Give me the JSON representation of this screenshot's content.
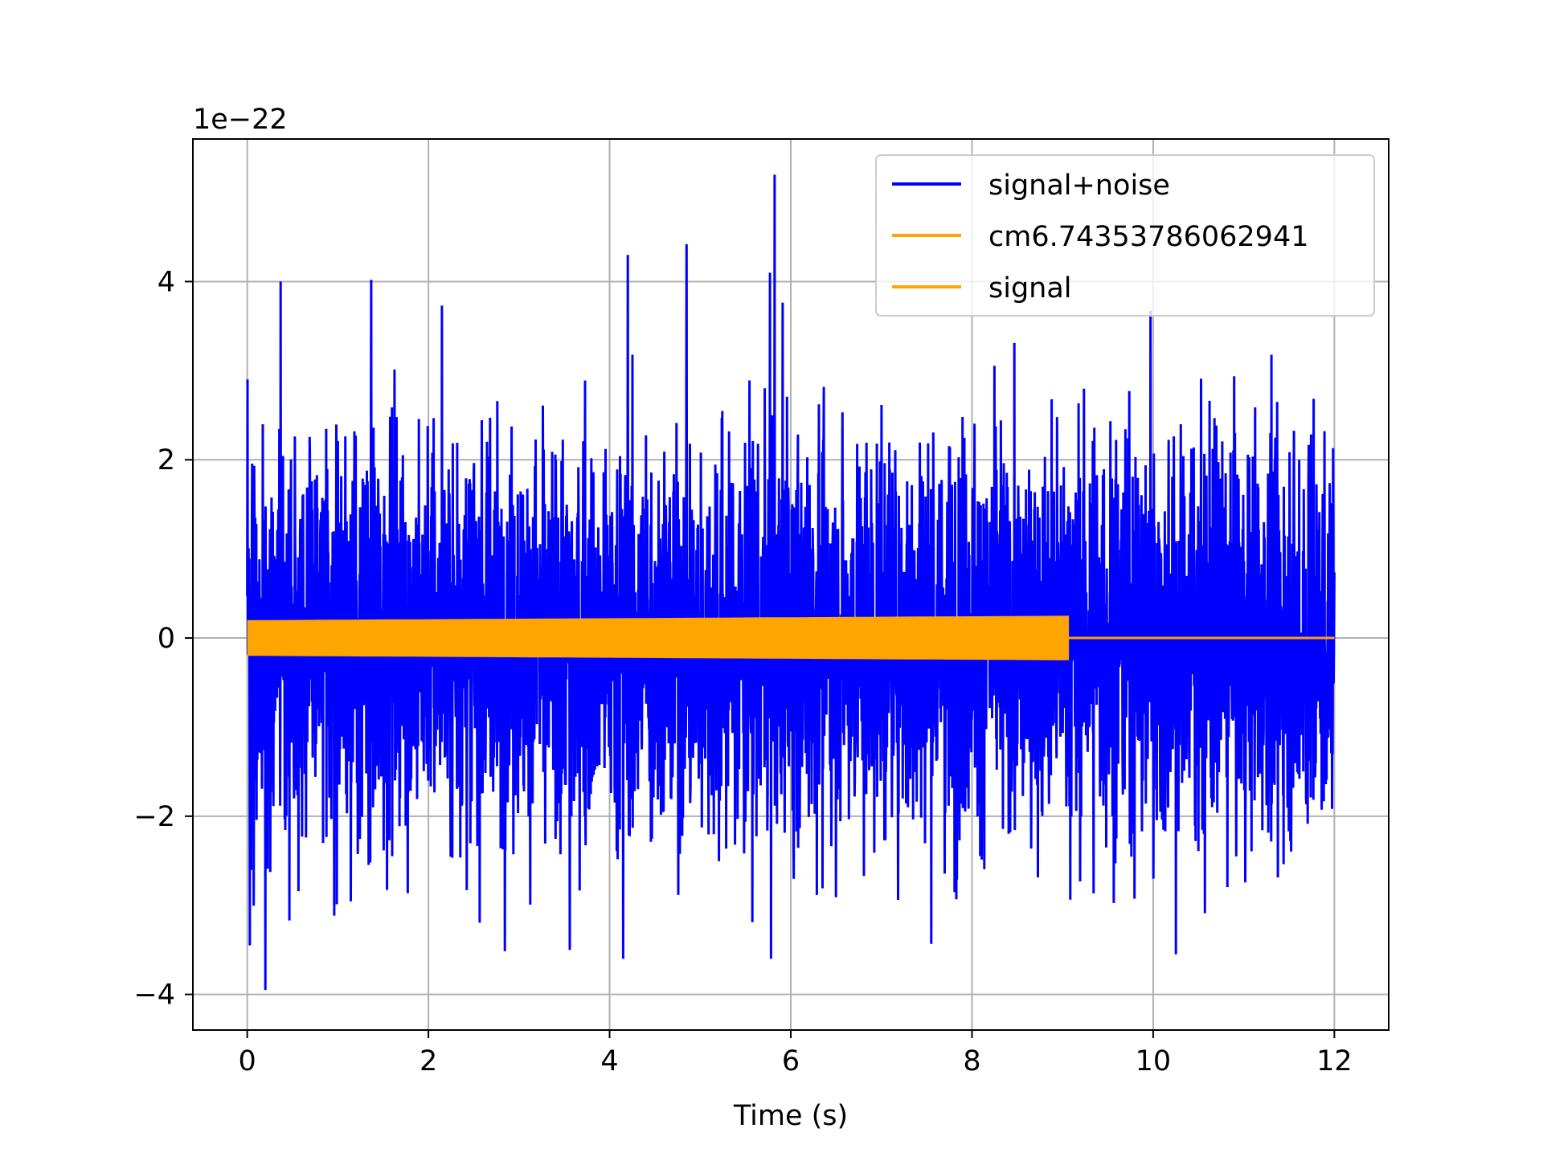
{
  "chart_data": {
    "type": "line",
    "title": "",
    "xlabel": "Time (s)",
    "ylabel": "",
    "y_offset_text": "1e−22",
    "xlim": [
      -0.6,
      12.6
    ],
    "ylim": [
      -4.4,
      5.6
    ],
    "xticks": [
      0,
      2,
      4,
      6,
      8,
      10,
      12
    ],
    "xtick_labels": [
      "0",
      "2",
      "4",
      "6",
      "8",
      "10",
      "12"
    ],
    "yticks": [
      -4,
      -2,
      0,
      2,
      4
    ],
    "ytick_labels": [
      "−4",
      "−2",
      "0",
      "2",
      "4"
    ],
    "grid": true,
    "legend_position": "top-right",
    "series": [
      {
        "name": "signal+noise",
        "color": "#0000ff",
        "x_range": [
          0,
          12
        ],
        "stats": {
          "min": -3.95,
          "max": 5.2,
          "typical_envelope": 2.0
        },
        "notable_peaks": [
          {
            "x": 0.37,
            "y": 4.0
          },
          {
            "x": 1.37,
            "y": 4.02
          },
          {
            "x": 2.15,
            "y": 3.73
          },
          {
            "x": 4.2,
            "y": 4.3
          },
          {
            "x": 4.85,
            "y": 4.42
          },
          {
            "x": 5.77,
            "y": 4.1
          },
          {
            "x": 5.82,
            "y": 5.2
          },
          {
            "x": 9.97,
            "y": 3.67
          }
        ],
        "notable_troughs": [
          {
            "x": 0.03,
            "y": -3.45
          },
          {
            "x": 0.2,
            "y": -3.95
          },
          {
            "x": 3.56,
            "y": -3.5
          },
          {
            "x": 4.15,
            "y": -3.6
          },
          {
            "x": 5.78,
            "y": -3.6
          },
          {
            "x": 10.25,
            "y": -3.55
          }
        ]
      },
      {
        "name": "cm6.74353786062941",
        "color": "#ffa500",
        "x_range": [
          0,
          12
        ],
        "constant_value": 0
      },
      {
        "name": "signal",
        "color": "#ffa500",
        "x_range": [
          0,
          12
        ],
        "oscillation": {
          "x_start": 0,
          "x_end": 9.07,
          "amplitude_start": 0.2,
          "amplitude_end": 0.25
        },
        "after_end_value": 0
      }
    ]
  }
}
